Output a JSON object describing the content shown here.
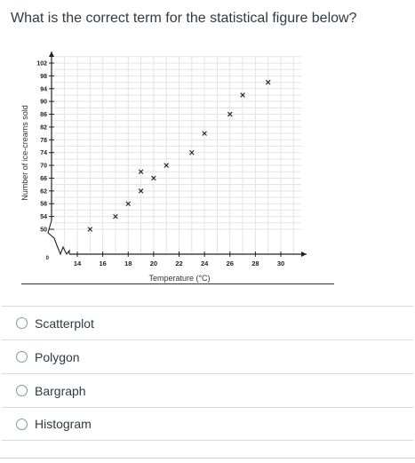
{
  "question": {
    "text": "What is the correct term for the statistical figure below?"
  },
  "chart_data": {
    "type": "scatter",
    "title": "",
    "xlabel": "Temperature (°C)",
    "ylabel": "Number of ice-creams sold",
    "x_ticks": [
      14,
      16,
      18,
      20,
      22,
      24,
      26,
      28,
      30
    ],
    "y_ticks": [
      50,
      54,
      58,
      62,
      66,
      70,
      74,
      78,
      82,
      86,
      90,
      94,
      98,
      102
    ],
    "origin_label": "0",
    "xlim": [
      12.5,
      31.5
    ],
    "ylim": [
      48,
      104
    ],
    "grid": true,
    "axis_break": true,
    "marker": "x",
    "points": [
      {
        "x": 15,
        "y": 50
      },
      {
        "x": 17,
        "y": 54
      },
      {
        "x": 18,
        "y": 58
      },
      {
        "x": 19,
        "y": 62
      },
      {
        "x": 19,
        "y": 68
      },
      {
        "x": 20,
        "y": 66
      },
      {
        "x": 21,
        "y": 70
      },
      {
        "x": 23,
        "y": 74
      },
      {
        "x": 24,
        "y": 80
      },
      {
        "x": 26,
        "y": 86
      },
      {
        "x": 27,
        "y": 92
      },
      {
        "x": 29,
        "y": 96
      }
    ]
  },
  "answers": [
    {
      "label": "Scatterplot"
    },
    {
      "label": "Polygon"
    },
    {
      "label": "Bargraph"
    },
    {
      "label": "Histogram"
    }
  ]
}
